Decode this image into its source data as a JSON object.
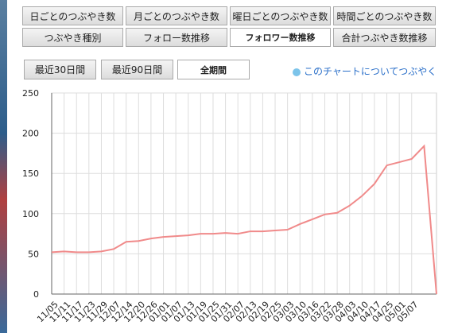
{
  "tabs": {
    "row1": [
      "日ごとのつぶやき数",
      "月ごとのつぶやき数",
      "曜日ごとのつぶやき数",
      "時間ごとのつぶやき数"
    ],
    "row2": [
      "つぶやき種別",
      "フォロー数推移",
      "フォロワー数推移",
      "合計つぶやき数推移"
    ]
  },
  "range_buttons": [
    "最近30日間",
    "最近90日間",
    "全期間"
  ],
  "share_link": "このチャートについてつぶやく",
  "chart_data": {
    "type": "line",
    "categories": [
      "11/05",
      "11/11",
      "11/17",
      "11/23",
      "11/29",
      "12/07",
      "12/14",
      "12/20",
      "12/26",
      "01/01",
      "01/07",
      "01/13",
      "01/19",
      "01/25",
      "01/31",
      "02/07",
      "02/13",
      "02/19",
      "02/25",
      "03/03",
      "03/10",
      "03/16",
      "03/22",
      "03/28",
      "04/03",
      "04/10",
      "04/17",
      "04/25",
      "05/01",
      "05/07",
      null,
      null
    ],
    "values": [
      52,
      53,
      52,
      52,
      53,
      56,
      65,
      66,
      69,
      71,
      72,
      73,
      75,
      75,
      76,
      75,
      78,
      78,
      79,
      80,
      87,
      93,
      99,
      101,
      110,
      122,
      137,
      160,
      164,
      168,
      184,
      0
    ],
    "color": "#f08a8a",
    "ylim": [
      0,
      250
    ],
    "yticks": [
      0,
      50,
      100,
      150,
      200,
      250
    ],
    "grid": true
  }
}
